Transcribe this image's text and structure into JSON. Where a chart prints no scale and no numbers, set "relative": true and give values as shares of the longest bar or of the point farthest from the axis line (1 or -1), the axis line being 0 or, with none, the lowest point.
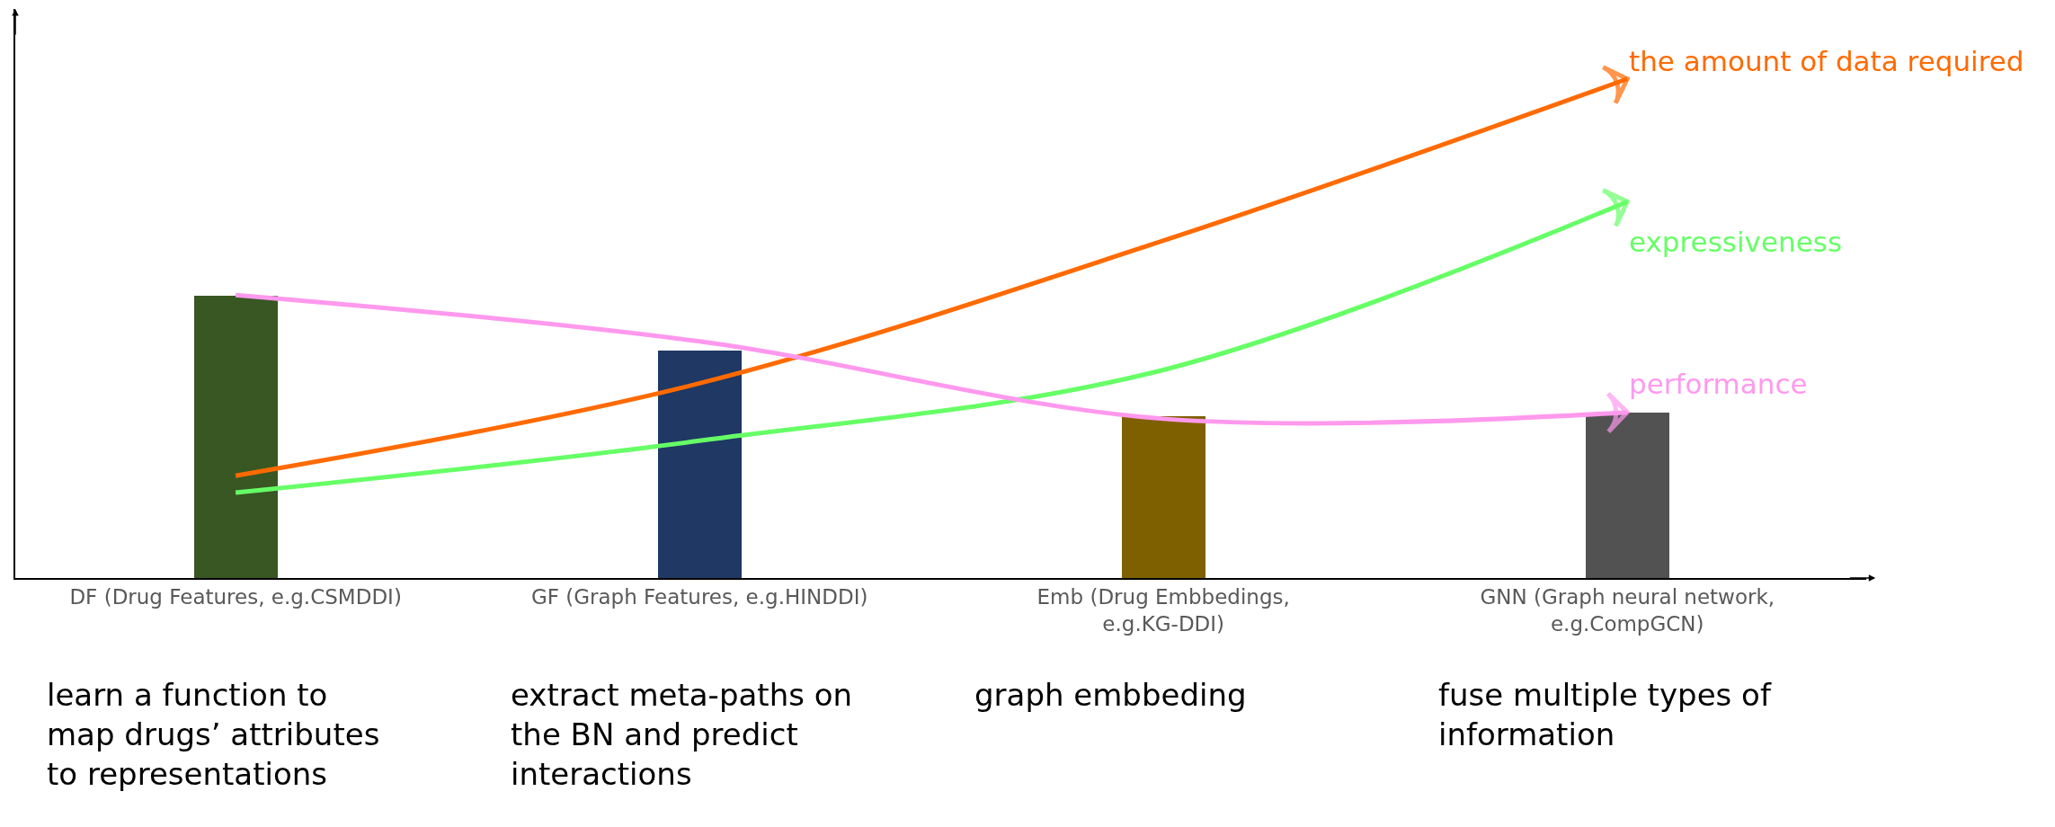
{
  "chart_data": {
    "type": "bar",
    "relative": true,
    "legend": "right",
    "grid": false,
    "categories": [
      "DF (Drug Features, e.g.CSMDDI)",
      "GF (Graph Features, e.g.HINDDI)",
      "Emb (Drug Embbedings, e.g.KG-DDI)",
      "GNN (Graph neural network, e.g.CompGCN)"
    ],
    "colors": [
      "#385723",
      "#1f3864",
      "#7f6000",
      "#525252"
    ],
    "values": [
      0.565,
      0.456,
      0.324,
      0.332
    ],
    "series": [
      {
        "type": "line",
        "name": "the amount of data required",
        "color": "#ff6a00",
        "values": [
          0.205,
          0.39,
          0.676,
          1
        ]
      },
      {
        "type": "line",
        "name": "expressiveness",
        "color": "#66ff66",
        "values": [
          0.171,
          0.275,
          0.417,
          0.754
        ]
      },
      {
        "type": "line",
        "name": "performance",
        "color": "#ff99ee",
        "values": [
          0.567,
          0.474,
          0.319,
          0.332
        ]
      }
    ],
    "annotations": [
      "learn a function to map drugs’ attributes to representations",
      "extract meta-paths on the BN and predict interactions",
      "graph embbeding",
      "fuse multiple types of information"
    ]
  }
}
